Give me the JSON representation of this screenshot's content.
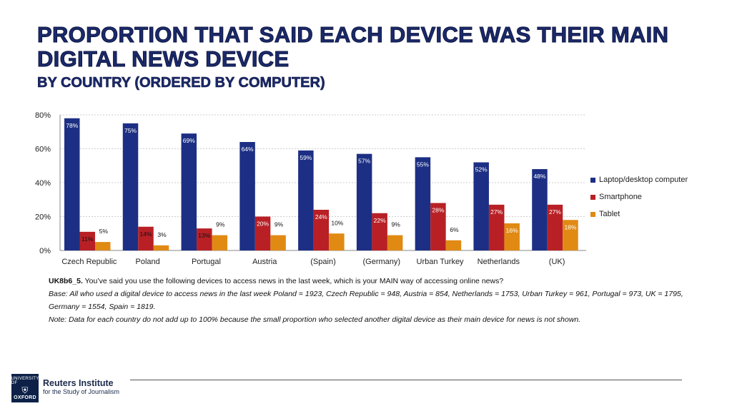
{
  "title": "PROPORTION THAT SAID EACH DEVICE WAS THEIR MAIN DIGITAL NEWS DEVICE",
  "subtitle": "BY COUNTRY (ORDERED BY COMPUTER)",
  "chart_data": {
    "type": "bar",
    "categories": [
      "Czech Republic",
      "Poland",
      "Portugal",
      "Austria",
      "(Spain)",
      "(Germany)",
      "Urban Turkey",
      "Netherlands",
      "(UK)"
    ],
    "series": [
      {
        "name": "Laptop/desktop computer",
        "color": "#1c2f84",
        "values": [
          78,
          75,
          69,
          64,
          59,
          57,
          55,
          52,
          48
        ]
      },
      {
        "name": "Smartphone",
        "color": "#b82025",
        "values": [
          11,
          14,
          13,
          20,
          24,
          22,
          28,
          27,
          27
        ]
      },
      {
        "name": "Tablet",
        "color": "#e08a14",
        "values": [
          5,
          3,
          9,
          9,
          10,
          9,
          6,
          16,
          18
        ]
      }
    ],
    "value_suffix": "%",
    "ylim": [
      0,
      80
    ],
    "yticks": [
      "0%",
      "20%",
      "40%",
      "60%",
      "80%"
    ],
    "ytick_values": [
      0,
      20,
      40,
      60,
      80
    ],
    "grid": true,
    "legend_position": "right"
  },
  "notes": {
    "question_code": "UK8b6_5.",
    "question_text": " You’ve said you use the following devices to access news in the last week, which is your MAIN way of accessing online news?",
    "base": "Base: All who used a digital device to access news in the last week Poland = 1923, Czech Republic = 948, Austria = 854, Netherlands = 1753, Urban Turkey = 961, Portugal = 973, UK = 1795, Germany = 1554, Spain = 1819.",
    "note": "Note: Data for each country do not add up to 100% because the small proportion who selected another digital device as their main device for news is not shown."
  },
  "logo": {
    "crest_top": "UNIVERSITY OF",
    "crest_bottom": "OXFORD",
    "name": "Reuters Institute",
    "sub": "for the Study of Journalism"
  }
}
